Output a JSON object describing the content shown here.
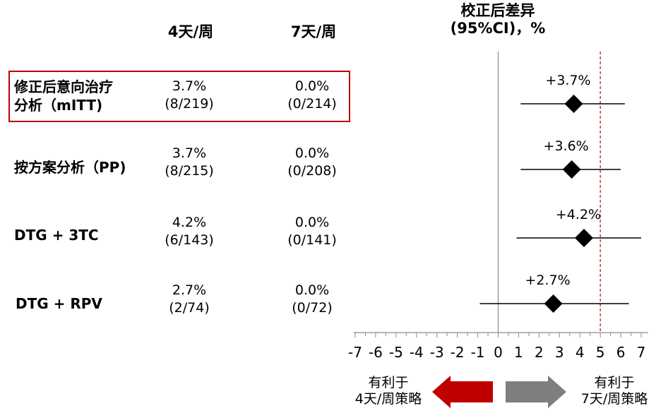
{
  "headers": {
    "col1": "4天/周",
    "col2": "7天/周",
    "col3_line1": "校正后差异",
    "col3_line2": "(95%CI)，%"
  },
  "rows": [
    {
      "label_line1": "修正后意向治疗",
      "label_line2": "分析（mITT)",
      "c1_pct": "3.7%",
      "c1_frac": "(8/219)",
      "c2_pct": "0.0%",
      "c2_frac": "(0/214)",
      "highlighted": true
    },
    {
      "label_line1": "按方案分析（PP)",
      "label_line2": "",
      "c1_pct": "3.7%",
      "c1_frac": "(8/215)",
      "c2_pct": "0.0%",
      "c2_frac": "(0/208)",
      "highlighted": false
    },
    {
      "label_line1": "DTG + 3TC",
      "label_line2": "",
      "c1_pct": "4.2%",
      "c1_frac": "(6/143)",
      "c2_pct": "0.0%",
      "c2_frac": "(0/141)",
      "highlighted": false
    },
    {
      "label_line1": "DTG + RPV",
      "label_line2": "",
      "c1_pct": "2.7%",
      "c1_frac": "(2/74)",
      "c2_pct": "0.0%",
      "c2_frac": "(0/72)",
      "highlighted": false
    }
  ],
  "arrows": {
    "left_line1": "有利于",
    "left_line2": "4天/周策略",
    "left_color": "#c00000",
    "right_line1": "有利于",
    "right_line2": "7天/周策略",
    "right_color": "#7f7f7f"
  },
  "chart_data": {
    "type": "scatter",
    "subtype": "forest-plot",
    "xlim": [
      -7,
      7
    ],
    "xticks": [
      -7,
      -6,
      -5,
      -4,
      -3,
      -2,
      -1,
      0,
      1,
      2,
      3,
      4,
      5,
      6,
      7
    ],
    "reference_line": 0,
    "margin_line": 5,
    "margin_line_color": "#c00000",
    "points": [
      {
        "estimate": 3.7,
        "ci": [
          1.1,
          6.2
        ],
        "label": "+3.7%"
      },
      {
        "estimate": 3.6,
        "ci": [
          1.1,
          6.0
        ],
        "label": "+3.6%"
      },
      {
        "estimate": 4.2,
        "ci": [
          0.9,
          7.0
        ],
        "label": "+4.2%"
      },
      {
        "estimate": 2.7,
        "ci": [
          -0.9,
          6.4
        ],
        "label": "+2.7%"
      }
    ]
  }
}
